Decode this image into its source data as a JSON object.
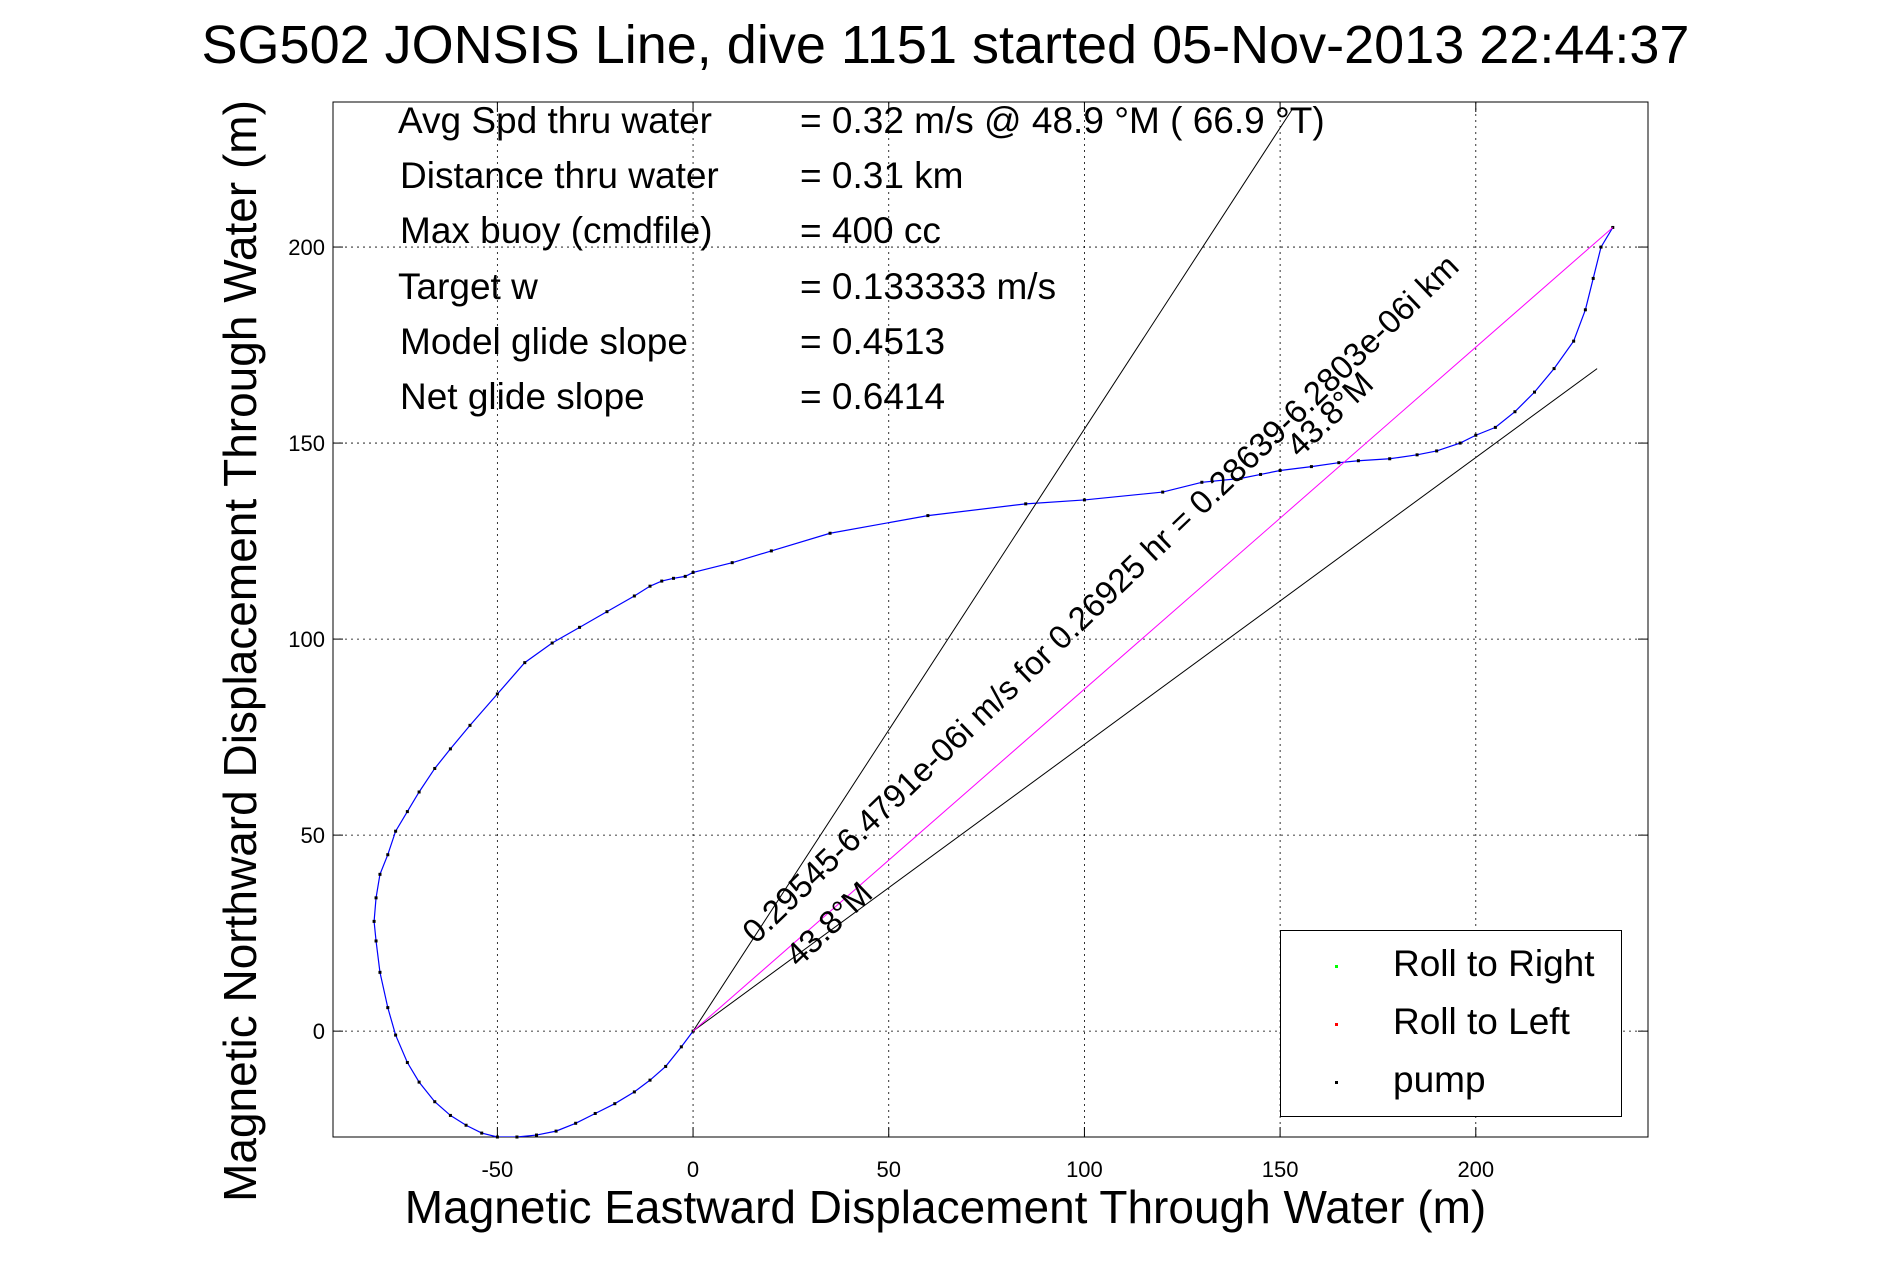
{
  "header": {
    "title": "SG502 JONSIS Line, dive 1151 started 05-Nov-2013 22:44:37"
  },
  "stats": [
    {
      "label": "Avg Spd thru water",
      "value": "=  0.32 m/s @  48.9 °M ( 66.9 °T)"
    },
    {
      "label": "Distance thru water",
      "value": "=  0.31 km"
    },
    {
      "label": "Max buoy (cmdfile)",
      "value": "= 400 cc"
    },
    {
      "label": "Target w",
      "value": "= 0.133333 m/s"
    },
    {
      "label": "Model glide slope",
      "value": "= 0.4513"
    },
    {
      "label": "Net glide slope",
      "value": "= 0.6414"
    }
  ],
  "legend": {
    "items": [
      {
        "label": "Roll to Right",
        "color": "#00ff00"
      },
      {
        "label": "Roll to Left",
        "color": "#ff0000"
      },
      {
        "label": "pump",
        "color": "#000000"
      }
    ]
  },
  "chart_data": {
    "type": "line",
    "title": "SG502 JONSIS Line, dive 1151 started 05-Nov-2013 22:44:37",
    "xlabel": "Magnetic Eastward Displacement Through Water (m)",
    "ylabel": "Magnetic Northward Displacement Through Water (m)",
    "xlim": [
      -92,
      244
    ],
    "ylim": [
      -27,
      237
    ],
    "xticks": [
      -50,
      0,
      50,
      100,
      150,
      200
    ],
    "yticks": [
      0,
      50,
      100,
      150,
      200
    ],
    "grid": true,
    "legend_position": "bottom-right",
    "series": [
      {
        "name": "track",
        "color": "#0000ff",
        "x": [
          0,
          -3,
          -7,
          -11,
          -15,
          -20,
          -25,
          -30,
          -35,
          -40,
          -45,
          -50,
          -54,
          -58,
          -62,
          -66,
          -70,
          -73,
          -76,
          -78,
          -80,
          -81,
          -81.5,
          -81,
          -80,
          -78,
          -76,
          -73,
          -70,
          -66,
          -62,
          -57,
          -50,
          -43,
          -36,
          -29,
          -22,
          -15,
          -11,
          -8,
          -5,
          -2,
          0,
          10,
          20,
          35,
          60,
          85,
          100,
          120,
          130,
          140,
          145,
          150,
          158,
          165,
          170,
          178,
          185,
          190,
          196,
          200,
          205,
          210,
          215,
          220,
          225,
          228,
          230,
          232,
          235
        ],
        "y": [
          0,
          -4,
          -9,
          -12.5,
          -15.5,
          -18.5,
          -21,
          -23.5,
          -25.5,
          -26.5,
          -27,
          -27,
          -26,
          -24,
          -21.5,
          -18,
          -13,
          -8,
          -1,
          6,
          15,
          23,
          28,
          34,
          40,
          45,
          51,
          56,
          61,
          67,
          72,
          78,
          86,
          94,
          99,
          103,
          107,
          111,
          113.5,
          114.8,
          115.5,
          116,
          117,
          119.5,
          122.5,
          127,
          131.5,
          134.5,
          135.5,
          137.5,
          140,
          141,
          142,
          143,
          144,
          145,
          145.5,
          146,
          147,
          148,
          150,
          152,
          154,
          158,
          163,
          169,
          176,
          184,
          192,
          200,
          205
        ]
      },
      {
        "name": "ref-line-1",
        "color": "#000000",
        "x": [
          0,
          153
        ],
        "y": [
          0,
          235
        ]
      },
      {
        "name": "ref-line-2",
        "color": "#000000",
        "x": [
          0,
          231
        ],
        "y": [
          0,
          169
        ]
      }
    ],
    "annotations": [
      {
        "text": "0.29545-6.4791e-06i m/s for 0.26925 hr = 0.28639-6.2803e-06i km",
        "x": 16,
        "y": 22,
        "angle_deg": 43.8
      },
      {
        "text": "43.8°M",
        "x": 27,
        "y": 16,
        "angle_deg": 43.8
      },
      {
        "text": "43.8°M",
        "x": 155,
        "y": 146,
        "angle_deg": 43.8
      }
    ]
  }
}
